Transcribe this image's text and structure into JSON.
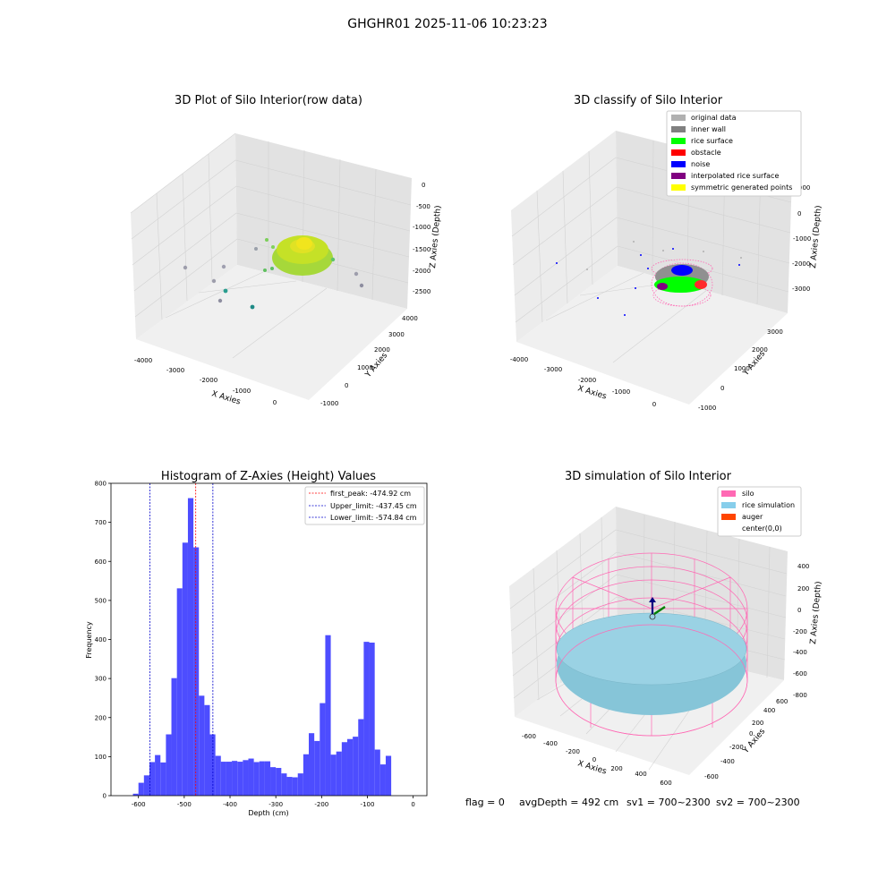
{
  "figure": {
    "suptitle": "GHGHR01 2025-11-06 10:23:23",
    "footer": {
      "flag": "flag = 0",
      "avg_depth": "avgDepth = 492 cm",
      "sv1": "sv1 = 700~2300",
      "sv2": "sv2 = 700~2300"
    }
  },
  "colors": {
    "hist_bar": "#4d4dff",
    "first_peak_line": "#ff0000",
    "limit_line": "#0000cc",
    "pane_side": "#ececec",
    "pane_back": "#e4e4e4",
    "grid": "#d0d0d0",
    "silo": "#ff69b4",
    "rice_simulation": "#87ceeb",
    "auger": "#ff4500",
    "original_data": "#b0b0b0",
    "inner_wall": "#808080",
    "rice_surface": "#00ff00",
    "obstacle": "#ff0000",
    "noise": "#0000ff",
    "interpolated_rice_surface": "#800080",
    "symmetric_generated_points": "#ffff00"
  },
  "chart_data": [
    {
      "type": "scatter",
      "subtype": "3d",
      "title": "3D Plot of Silo Interior(row data)",
      "xlabel": "X Axies",
      "ylabel": "Y Axies",
      "zlabel": "Z Axies (Depth)",
      "x_ticks": [
        "-4000",
        "-3000",
        "-2000",
        "-1000",
        "0"
      ],
      "y_ticks": [
        "-1000",
        "0",
        "1000",
        "2000",
        "3000",
        "4000"
      ],
      "z_ticks": [
        "0",
        "-500",
        "-1000",
        "-1500",
        "-2000",
        "-2500"
      ],
      "colormap": "viridis",
      "grid": true
    },
    {
      "type": "scatter",
      "subtype": "3d",
      "title": "3D classify of Silo Interior",
      "xlabel": "X Axies",
      "ylabel": "Y Axies",
      "zlabel": "Z Axies (Depth)",
      "x_ticks": [
        "-4000",
        "-3000",
        "-2000",
        "-1000",
        "0"
      ],
      "y_ticks": [
        "-1000",
        "0",
        "1000",
        "2000",
        "3000"
      ],
      "z_ticks": [
        "0",
        "-1000",
        "-2000",
        "-3000"
      ],
      "z_ticks_hidden": [
        "000"
      ],
      "legend": [
        "original data",
        "inner wall",
        "rice surface",
        "obstacle",
        "noise",
        "interpolated rice surface",
        "symmetric generated points"
      ],
      "legend_position": "top-right",
      "grid": true
    },
    {
      "type": "bar",
      "subtype": "histogram",
      "title": "Histogram of Z-Axies (Height) Values",
      "xlabel": "Depth (cm)",
      "ylabel": "Frequency",
      "xlim": [
        -660,
        30
      ],
      "ylim": [
        0,
        800
      ],
      "x_ticks": [
        -600,
        -500,
        -400,
        -300,
        -200,
        -100,
        0
      ],
      "y_ticks": [
        0,
        100,
        200,
        300,
        400,
        500,
        600,
        700,
        800
      ],
      "bin_width": 12,
      "bins": [
        {
          "x0": -612,
          "count": 5
        },
        {
          "x0": -600,
          "count": 33
        },
        {
          "x0": -588,
          "count": 52
        },
        {
          "x0": -576,
          "count": 86
        },
        {
          "x0": -564,
          "count": 104
        },
        {
          "x0": -552,
          "count": 85
        },
        {
          "x0": -540,
          "count": 157
        },
        {
          "x0": -528,
          "count": 301
        },
        {
          "x0": -516,
          "count": 531
        },
        {
          "x0": -504,
          "count": 648
        },
        {
          "x0": -492,
          "count": 762
        },
        {
          "x0": -480,
          "count": 636
        },
        {
          "x0": -468,
          "count": 256
        },
        {
          "x0": -456,
          "count": 232
        },
        {
          "x0": -444,
          "count": 157
        },
        {
          "x0": -432,
          "count": 102
        },
        {
          "x0": -420,
          "count": 87
        },
        {
          "x0": -408,
          "count": 87
        },
        {
          "x0": -396,
          "count": 89
        },
        {
          "x0": -384,
          "count": 87
        },
        {
          "x0": -372,
          "count": 91
        },
        {
          "x0": -360,
          "count": 95
        },
        {
          "x0": -348,
          "count": 86
        },
        {
          "x0": -336,
          "count": 88
        },
        {
          "x0": -324,
          "count": 88
        },
        {
          "x0": -312,
          "count": 73
        },
        {
          "x0": -300,
          "count": 71
        },
        {
          "x0": -288,
          "count": 57
        },
        {
          "x0": -276,
          "count": 48
        },
        {
          "x0": -264,
          "count": 47
        },
        {
          "x0": -252,
          "count": 57
        },
        {
          "x0": -240,
          "count": 106
        },
        {
          "x0": -228,
          "count": 160
        },
        {
          "x0": -216,
          "count": 140
        },
        {
          "x0": -204,
          "count": 237
        },
        {
          "x0": -192,
          "count": 411
        },
        {
          "x0": -180,
          "count": 105
        },
        {
          "x0": -168,
          "count": 113
        },
        {
          "x0": -156,
          "count": 137
        },
        {
          "x0": -144,
          "count": 145
        },
        {
          "x0": -132,
          "count": 151
        },
        {
          "x0": -120,
          "count": 196
        },
        {
          "x0": -108,
          "count": 394
        },
        {
          "x0": -96,
          "count": 392
        },
        {
          "x0": -84,
          "count": 118
        },
        {
          "x0": -72,
          "count": 80
        },
        {
          "x0": -60,
          "count": 102
        }
      ],
      "vlines": [
        {
          "label": "first_peak: -474.92 cm",
          "x": -474.92,
          "color": "#ff0000"
        },
        {
          "label": "Upper_limit: -437.45 cm",
          "x": -437.45,
          "color": "#0000cc"
        },
        {
          "label": "Lower_limit: -574.84 cm",
          "x": -574.84,
          "color": "#0000cc"
        }
      ],
      "legend_position": "top-right",
      "grid": false
    },
    {
      "type": "scatter",
      "subtype": "3d",
      "title": "3D simulation of Silo Interior",
      "xlabel": "X Axies",
      "ylabel": "Y Axies",
      "zlabel": "Z Axies (Depth)",
      "x_ticks": [
        "-600",
        "-400",
        "-200",
        "0",
        "200",
        "400",
        "600"
      ],
      "y_ticks": [
        "-600",
        "-400",
        "-200",
        "0",
        "200",
        "400",
        "600"
      ],
      "z_ticks": [
        "400",
        "200",
        "0",
        "-200",
        "-400",
        "-600",
        "-800"
      ],
      "legend": [
        "silo",
        "rice simulation",
        "auger",
        "center(0,0)"
      ],
      "legend_position": "top-right",
      "grid": true
    }
  ]
}
